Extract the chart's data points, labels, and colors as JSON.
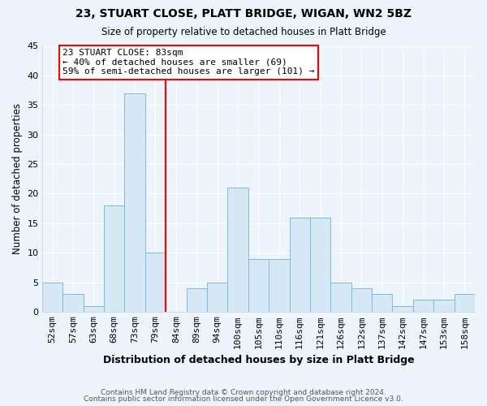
{
  "title": "23, STUART CLOSE, PLATT BRIDGE, WIGAN, WN2 5BZ",
  "subtitle": "Size of property relative to detached houses in Platt Bridge",
  "xlabel": "Distribution of detached houses by size in Platt Bridge",
  "ylabel": "Number of detached properties",
  "footer_line1": "Contains HM Land Registry data © Crown copyright and database right 2024.",
  "footer_line2": "Contains public sector information licensed under the Open Government Licence v3.0.",
  "bar_labels": [
    "52sqm",
    "57sqm",
    "63sqm",
    "68sqm",
    "73sqm",
    "79sqm",
    "84sqm",
    "89sqm",
    "94sqm",
    "100sqm",
    "105sqm",
    "110sqm",
    "116sqm",
    "121sqm",
    "126sqm",
    "132sqm",
    "137sqm",
    "142sqm",
    "147sqm",
    "153sqm",
    "158sqm"
  ],
  "bar_values": [
    5,
    3,
    1,
    18,
    37,
    10,
    0,
    4,
    5,
    21,
    9,
    9,
    16,
    16,
    5,
    4,
    3,
    1,
    2,
    2,
    3
  ],
  "bar_color": "#d6e8f5",
  "bar_edgecolor": "#7fb8d8",
  "marker_label": "23 STUART CLOSE: 83sqm",
  "annotation_line1": "← 40% of detached houses are smaller (69)",
  "annotation_line2": "59% of semi-detached houses are larger (101) →",
  "marker_color": "red",
  "red_line_between": [
    5,
    6
  ],
  "ylim": [
    0,
    45
  ],
  "yticks": [
    0,
    5,
    10,
    15,
    20,
    25,
    30,
    35,
    40,
    45
  ],
  "background_color": "#eef4fb",
  "grid_color": "#ffffff",
  "annotation_box_edgecolor": "red",
  "annotation_box_facecolor": "#ffffff",
  "title_fontsize": 10,
  "subtitle_fontsize": 8.5,
  "xlabel_fontsize": 9,
  "ylabel_fontsize": 8.5,
  "tick_fontsize": 8,
  "footer_fontsize": 6.5
}
